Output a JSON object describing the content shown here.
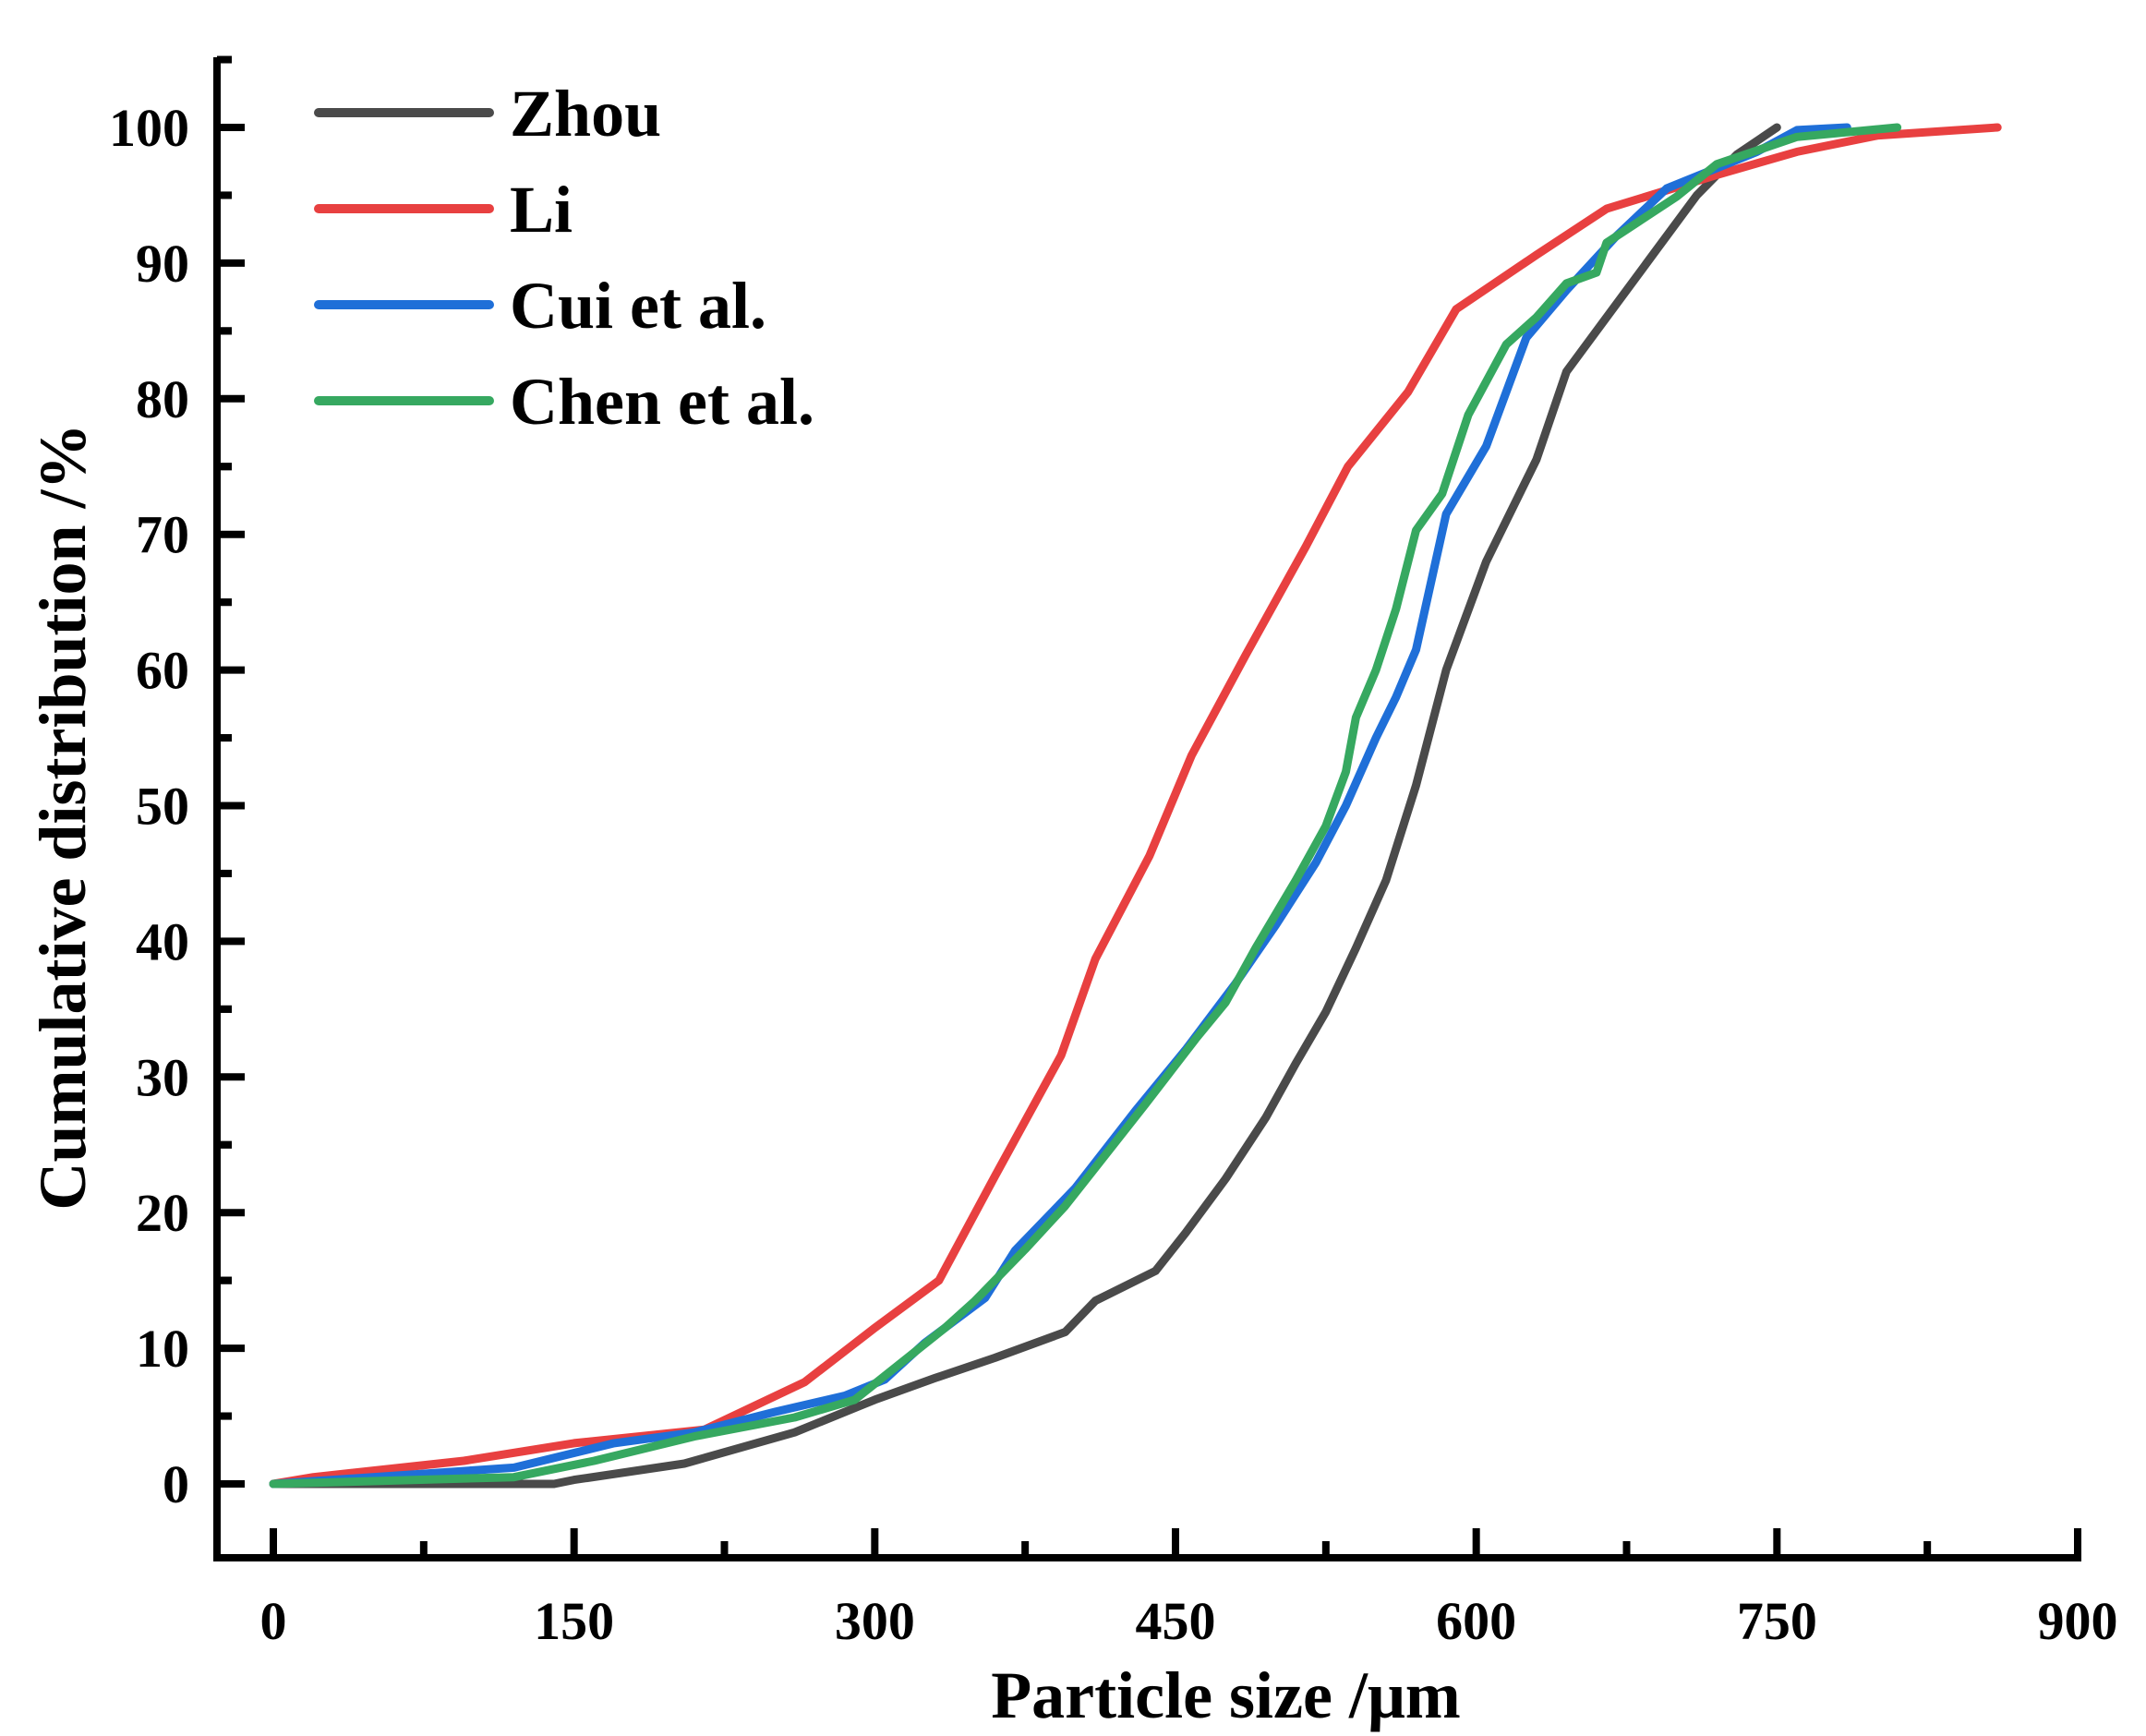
{
  "chart_data": {
    "type": "line",
    "title": "",
    "xlabel": "Particle size /μm",
    "ylabel": "Cumulative distribution /%",
    "xlim": [
      -10,
      900
    ],
    "ylim": [
      -5,
      105
    ],
    "xticks": [
      0,
      150,
      300,
      450,
      600,
      750,
      900
    ],
    "yticks": [
      0,
      10,
      20,
      30,
      40,
      50,
      60,
      70,
      80,
      90,
      100
    ],
    "legend_position": "top-left",
    "series": [
      {
        "name": "Zhou",
        "color": "#4a4a4a",
        "x": [
          0,
          140,
          150,
          205,
          260,
          300,
          330,
          360,
          395,
          410,
          440,
          455,
          475,
          495,
          510,
          525,
          540,
          555,
          570,
          585,
          605,
          630,
          645,
          665,
          690,
          710,
          730,
          750
        ],
        "y": [
          0,
          0,
          0.3,
          1.5,
          3.8,
          6.2,
          7.8,
          9.3,
          11.2,
          13.5,
          15.7,
          18.5,
          22.5,
          27,
          31,
          34.8,
          39.5,
          44.5,
          51.5,
          60,
          68,
          75.5,
          82,
          86,
          91,
          95,
          98,
          100
        ]
      },
      {
        "name": "Li",
        "color": "#e84040",
        "x": [
          0,
          20,
          95,
          150,
          215,
          265,
          300,
          332,
          360,
          393,
          410,
          437,
          458,
          485,
          515,
          536,
          566,
          590,
          630,
          665,
          720,
          760,
          800,
          860
        ],
        "y": [
          0,
          0.5,
          1.7,
          3,
          4,
          7.5,
          11.5,
          15,
          22.7,
          31.6,
          38.7,
          46.3,
          53.7,
          61.1,
          69.1,
          75,
          80.5,
          86.6,
          90.6,
          94,
          96.5,
          98.2,
          99.4,
          100
        ]
      },
      {
        "name": "Cui et al.",
        "color": "#1f6fd8",
        "x": [
          0,
          120,
          170,
          210,
          250,
          285,
          305,
          325,
          355,
          370,
          400,
          430,
          455,
          480,
          500,
          520,
          535,
          550,
          560,
          570,
          585,
          605,
          625,
          645,
          670,
          695,
          720,
          740,
          760,
          785
        ],
        "y": [
          0,
          1.2,
          3,
          3.8,
          5.3,
          6.5,
          7.7,
          10.4,
          13.7,
          17.2,
          21.8,
          27.5,
          32,
          36.9,
          41.2,
          45.8,
          50,
          55,
          58,
          61.5,
          71.5,
          76.5,
          84.5,
          88,
          92,
          95.5,
          97,
          98.2,
          99.8,
          100
        ]
      },
      {
        "name": "Chen et al.",
        "color": "#36a860",
        "x": [
          0,
          120,
          160,
          210,
          260,
          290,
          335,
          350,
          375,
          395,
          435,
          460,
          475,
          490,
          510,
          525,
          535,
          540,
          550,
          560,
          570,
          583,
          596,
          615,
          630,
          645,
          660,
          665,
          700,
          720,
          760,
          810
        ],
        "y": [
          0,
          0.5,
          1.7,
          3.5,
          4.9,
          6.2,
          11.5,
          13.5,
          17.3,
          20.5,
          28,
          32.8,
          35.5,
          39.5,
          44.5,
          48.5,
          52.5,
          56.5,
          60,
          64.5,
          70.3,
          73,
          78.8,
          84,
          86,
          88.5,
          89.3,
          91.5,
          94.9,
          97.3,
          99.3,
          100
        ]
      }
    ]
  }
}
